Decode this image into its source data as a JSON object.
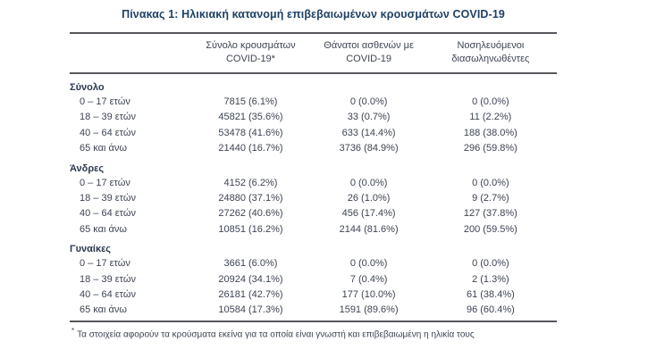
{
  "title": "Πίνακας 1: Ηλικιακή κατανομή επιβεβαιωμένων κρουσμάτων COVID-19",
  "table": {
    "columns": [
      {
        "line1": "Σύνολο κρουσμάτων",
        "line2": "COVID-19*"
      },
      {
        "line1": "Θάνατοι ασθενών με",
        "line2": "COVID-19"
      },
      {
        "line1": "Νοσηλευόμενοι",
        "line2": "διασωληνωθέντες"
      }
    ],
    "sections": [
      {
        "header": "Σύνολο",
        "rows": [
          {
            "label": "0 – 17 ετών",
            "cases": "7815 (6.1%)",
            "deaths": "0 (0.0%)",
            "intubated": "0 (0.0%)"
          },
          {
            "label": "18 – 39 ετών",
            "cases": "45821 (35.6%)",
            "deaths": "33 (0.7%)",
            "intubated": "11 (2.2%)"
          },
          {
            "label": "40 – 64 ετών",
            "cases": "53478 (41.6%)",
            "deaths": "633 (14.4%)",
            "intubated": "188 (38.0%)"
          },
          {
            "label": "65 και άνω",
            "cases": "21440 (16.7%)",
            "deaths": "3736 (84.9%)",
            "intubated": "296 (59.8%)"
          }
        ]
      },
      {
        "header": "Άνδρες",
        "rows": [
          {
            "label": "0 – 17 ετών",
            "cases": "4152 (6.2%)",
            "deaths": "0 (0.0%)",
            "intubated": "0 (0.0%)"
          },
          {
            "label": "18 – 39 ετών",
            "cases": "24880 (37.1%)",
            "deaths": "26 (1.0%)",
            "intubated": "9 (2.7%)"
          },
          {
            "label": "40 – 64 ετών",
            "cases": "27262 (40.6%)",
            "deaths": "456 (17.4%)",
            "intubated": "127 (37.8%)"
          },
          {
            "label": "65 και άνω",
            "cases": "10851 (16.2%)",
            "deaths": "2144 (81.6%)",
            "intubated": "200 (59.5%)"
          }
        ]
      },
      {
        "header": "Γυναίκες",
        "rows": [
          {
            "label": "0 – 17 ετών",
            "cases": "3661 (6.0%)",
            "deaths": "0 (0.0%)",
            "intubated": "0 (0.0%)"
          },
          {
            "label": "18 – 39 ετών",
            "cases": "20924 (34.1%)",
            "deaths": "7 (0.4%)",
            "intubated": "2 (1.3%)"
          },
          {
            "label": "40 – 64 ετών",
            "cases": "26181 (42.7%)",
            "deaths": "177 (10.0%)",
            "intubated": "61 (38.4%)"
          },
          {
            "label": "65 και άνω",
            "cases": "10584 (17.3%)",
            "deaths": "1591 (89.6%)",
            "intubated": "96 (60.4%)"
          }
        ]
      }
    ]
  },
  "footnote": {
    "marker": "*",
    "text": "Τα στοιχεία αφορούν τα κρούσματα εκείνα για τα οποία είναι γνωστή και επιβεβαιωμένη η ηλικία τους"
  },
  "colors": {
    "title": "#1e4164",
    "section_header": "#2c3950",
    "body_text": "#3d4454",
    "border": "#55575b",
    "background": "#ffffff"
  }
}
